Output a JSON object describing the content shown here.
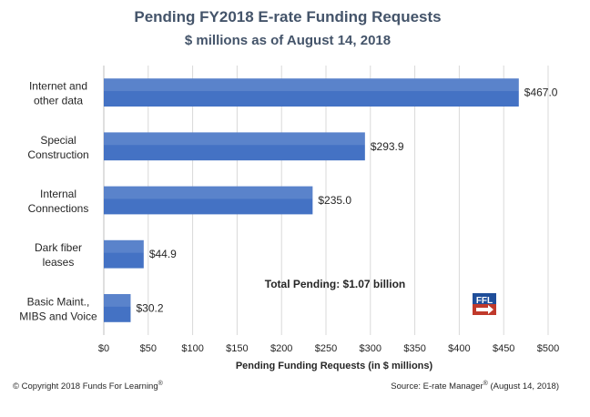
{
  "chart_data": {
    "type": "bar",
    "orientation": "horizontal",
    "title": "Pending FY2018 E-rate Funding Requests",
    "subtitle": "$ millions as of August 14, 2018",
    "categories": [
      [
        "Internet and",
        "other data"
      ],
      [
        "Special",
        "Construction"
      ],
      [
        "Internal",
        "Connections"
      ],
      [
        "Dark fiber",
        "leases"
      ],
      [
        "Basic Maint.,",
        "MIBS and Voice"
      ]
    ],
    "values": [
      467.0,
      293.9,
      235.0,
      44.9,
      30.2
    ],
    "data_labels": [
      "$467.0",
      "$293.9",
      "$235.0",
      "$44.9",
      "$30.2"
    ],
    "xlabel": "Pending Funding Requests (in $ millions)",
    "ylabel": "",
    "xlim": [
      0,
      500
    ],
    "xticks": [
      0,
      50,
      100,
      150,
      200,
      250,
      300,
      350,
      400,
      450,
      500
    ],
    "xtick_labels": [
      "$0",
      "$50",
      "$100",
      "$150",
      "$200",
      "$250",
      "$300",
      "$350",
      "$400",
      "$450",
      "$500"
    ],
    "grid": "vertical",
    "bar_color": "#4472c4",
    "annotation": "Total Pending: $1.07 billion"
  },
  "footer": {
    "copyright": "© Copyright 2018 Funds For Learning",
    "copyright_mark": "®",
    "source_prefix": "Source: E-rate Manager",
    "source_mark": "®",
    "source_suffix": " (August 14, 2018)"
  },
  "logo": {
    "text": "FFL",
    "color_top": "#1f4e9a",
    "color_bottom": "#c0392b",
    "icon": "ffl-logo-icon"
  }
}
